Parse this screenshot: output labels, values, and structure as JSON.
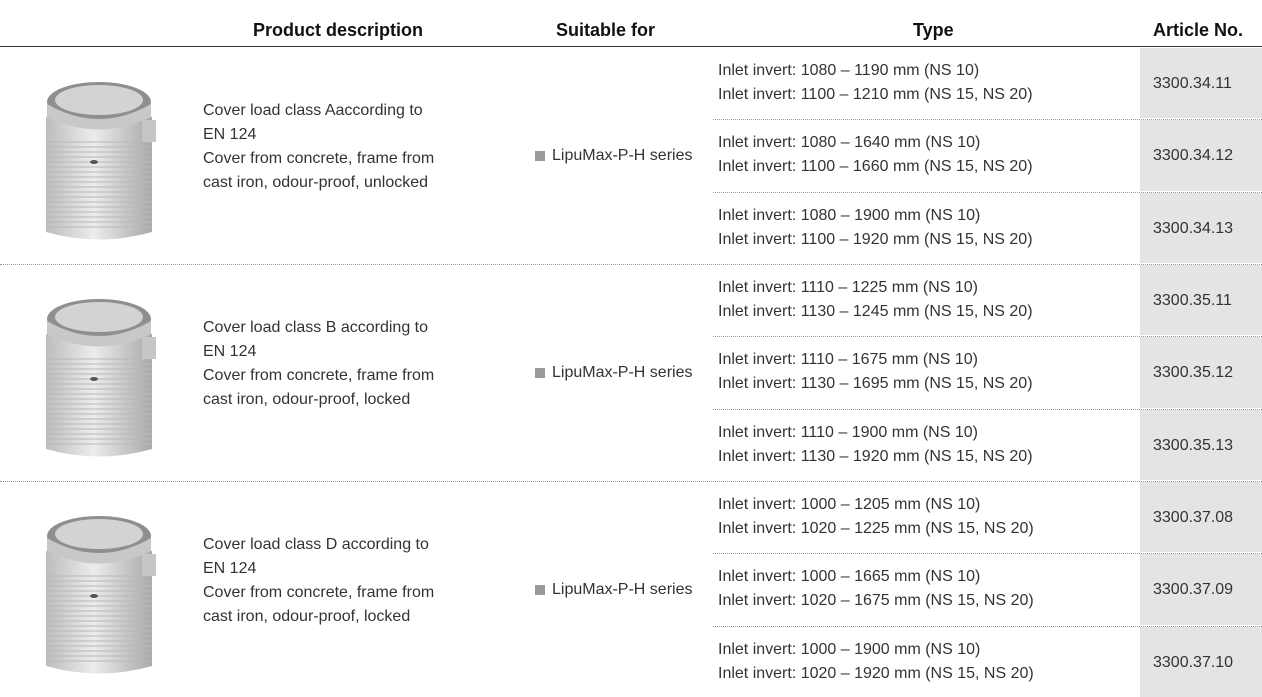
{
  "header": [
    "Product description",
    "Suitable for",
    "Type",
    "Article No."
  ],
  "groups": [
    {
      "description": [
        "Cover load class Aaccording to",
        "EN 124",
        "Cover from concrete, frame from",
        "cast iron, odour-proof, unlocked"
      ],
      "suitable": "LipuMax-P-H series",
      "rows": [
        {
          "type": [
            "Inlet invert: 1080 – 1190 mm (NS 10)",
            "Inlet invert: 1100 – 1210 mm (NS 15, NS 20)"
          ],
          "article": "3300.34.11"
        },
        {
          "type": [
            "Inlet invert: 1080 – 1640 mm (NS 10)",
            "Inlet invert: 1100 – 1660 mm (NS 15, NS 20)"
          ],
          "article": "3300.34.12"
        },
        {
          "type": [
            "Inlet invert: 1080 – 1900 mm (NS 10)",
            "Inlet invert: 1100 – 1920 mm (NS 15, NS 20)"
          ],
          "article": "3300.34.13"
        }
      ]
    },
    {
      "description": [
        "Cover load class B according to",
        "EN 124",
        "Cover from concrete, frame from",
        "cast iron, odour-proof, locked"
      ],
      "suitable": "LipuMax-P-H series",
      "rows": [
        {
          "type": [
            "Inlet invert: 1110 – 1225 mm (NS 10)",
            "Inlet invert: 1130 – 1245 mm (NS 15, NS 20)"
          ],
          "article": "3300.35.11"
        },
        {
          "type": [
            "Inlet invert: 1110 – 1675 mm (NS 10)",
            "Inlet invert: 1130 – 1695 mm (NS 15, NS 20)"
          ],
          "article": "3300.35.12"
        },
        {
          "type": [
            "Inlet invert: 1110 – 1900 mm (NS 10)",
            "Inlet invert: 1130 – 1920 mm (NS 15, NS 20)"
          ],
          "article": "3300.35.13"
        }
      ]
    },
    {
      "description": [
        "Cover load class D according to",
        "EN 124",
        "Cover from concrete, frame from",
        "cast iron, odour-proof, locked"
      ],
      "suitable": "LipuMax-P-H series",
      "rows": [
        {
          "type": [
            "Inlet invert: 1000 – 1205 mm (NS 10)",
            "Inlet invert: 1020 – 1225 mm (NS 15, NS 20)"
          ],
          "article": "3300.37.08"
        },
        {
          "type": [
            "Inlet invert: 1000 – 1665 mm (NS 10)",
            "Inlet invert: 1020 – 1675 mm (NS 15, NS 20)"
          ],
          "article": "3300.37.09"
        },
        {
          "type": [
            "Inlet invert: 1000 – 1900 mm (NS 10)",
            "Inlet invert: 1020 – 1920 mm (NS 15, NS 20)"
          ],
          "article": "3300.37.10"
        }
      ]
    }
  ]
}
